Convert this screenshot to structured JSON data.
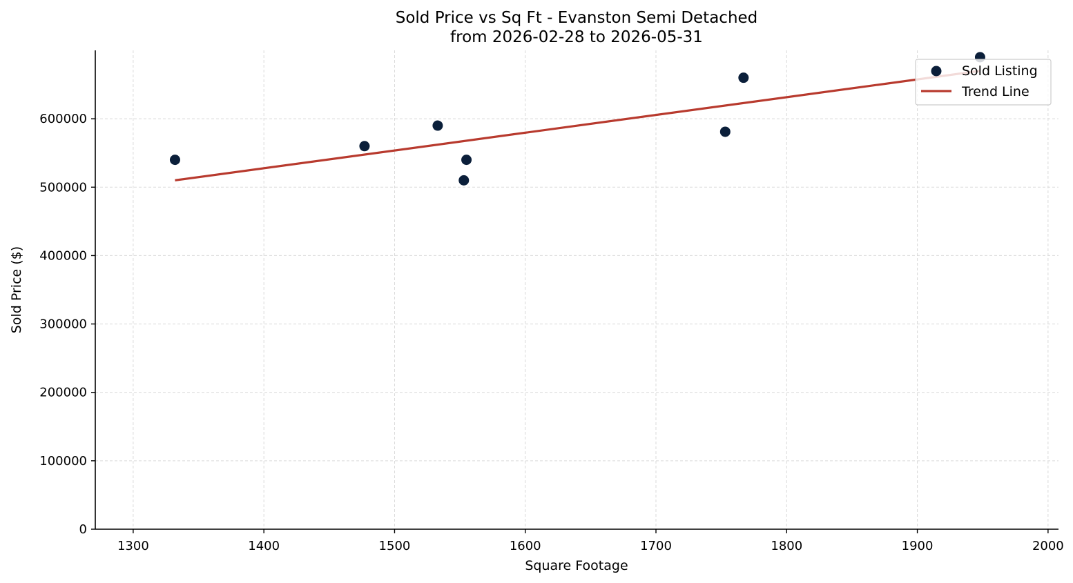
{
  "chart_data": {
    "type": "scatter",
    "title": "Sold Price vs Sq Ft - Evanston Semi Detached",
    "subtitle": "from 2026-02-28 to 2026-05-31",
    "xlabel": "Square Footage",
    "ylabel": "Sold Price ($)",
    "xlim": [
      1271,
      2008
    ],
    "ylim": [
      0,
      700000
    ],
    "xticks": [
      1300,
      1400,
      1500,
      1600,
      1700,
      1800,
      1900,
      2000
    ],
    "xtick_labels": [
      "1300",
      "1400",
      "1500",
      "1600",
      "1700",
      "1800",
      "1900",
      "2000"
    ],
    "yticks": [
      0,
      100000,
      200000,
      300000,
      400000,
      500000,
      600000
    ],
    "ytick_labels": [
      "0",
      "100000",
      "200000",
      "300000",
      "400000",
      "500000",
      "600000"
    ],
    "grid": true,
    "legend_position": "top-right",
    "series": [
      {
        "name": "Sold Listing",
        "kind": "scatter",
        "color": "#0b1f3a",
        "points": [
          {
            "x": 1332,
            "y": 540000
          },
          {
            "x": 1477,
            "y": 560000
          },
          {
            "x": 1533,
            "y": 590000
          },
          {
            "x": 1553,
            "y": 510000
          },
          {
            "x": 1555,
            "y": 540000
          },
          {
            "x": 1753,
            "y": 581000
          },
          {
            "x": 1767,
            "y": 660000
          },
          {
            "x": 1948,
            "y": 690000
          }
        ]
      },
      {
        "name": "Trend Line",
        "kind": "line",
        "color": "#b83a2e",
        "points": [
          {
            "x": 1332,
            "y": 510000
          },
          {
            "x": 1948,
            "y": 670000
          }
        ]
      }
    ]
  }
}
